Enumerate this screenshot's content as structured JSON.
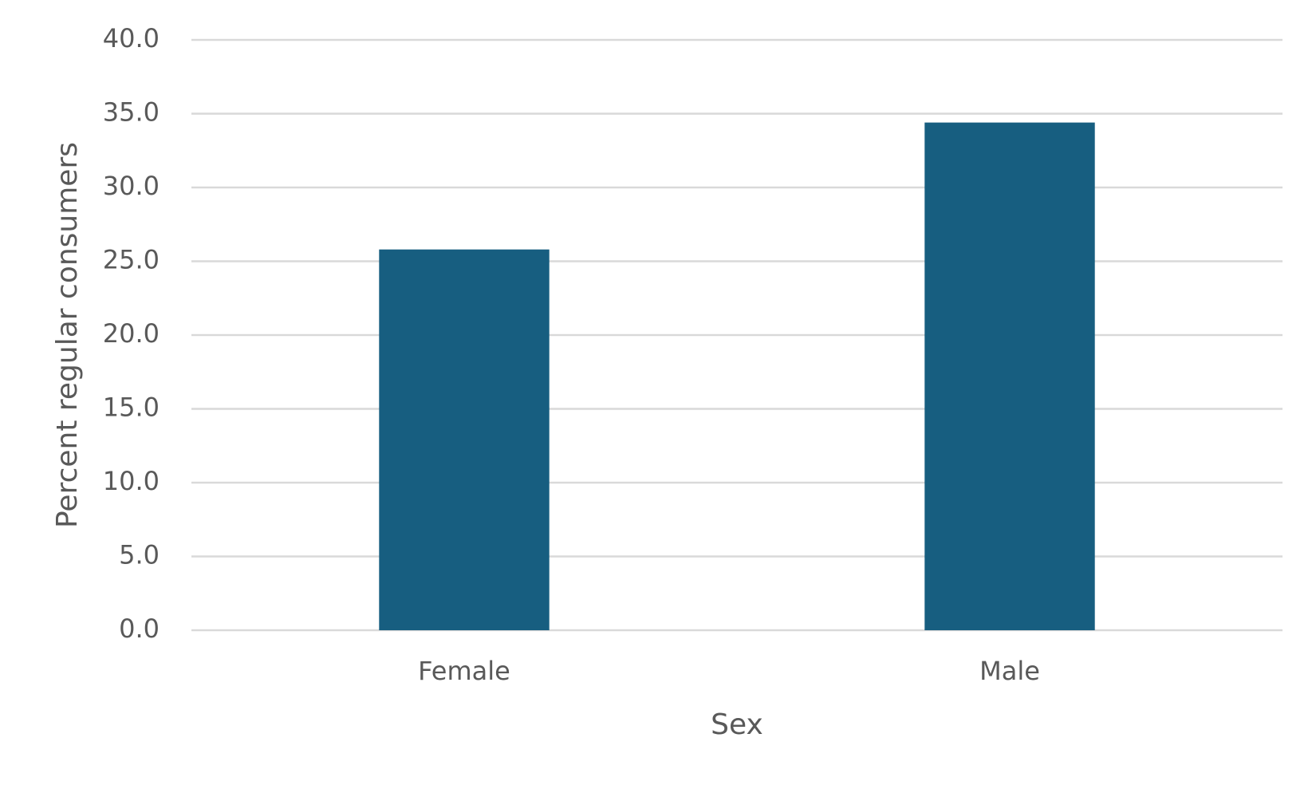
{
  "chart_data": {
    "type": "bar",
    "x_label": "Sex",
    "y_label": "Percent regular consumers",
    "categories": [
      "Female",
      "Male"
    ],
    "values": [
      25.8,
      34.4
    ],
    "color": "#175e80",
    "ylim": [
      0,
      40
    ],
    "yticks": [
      {
        "value": 0,
        "label": "0.0"
      },
      {
        "value": 5,
        "label": "5.0"
      },
      {
        "value": 10,
        "label": "10.0"
      },
      {
        "value": 15,
        "label": "15.0"
      },
      {
        "value": 20,
        "label": "20.0"
      },
      {
        "value": 25,
        "label": "25.0"
      },
      {
        "value": 30,
        "label": "30.0"
      },
      {
        "value": 35,
        "label": "35.0"
      },
      {
        "value": 40,
        "label": "40.0"
      }
    ],
    "grid": true
  }
}
